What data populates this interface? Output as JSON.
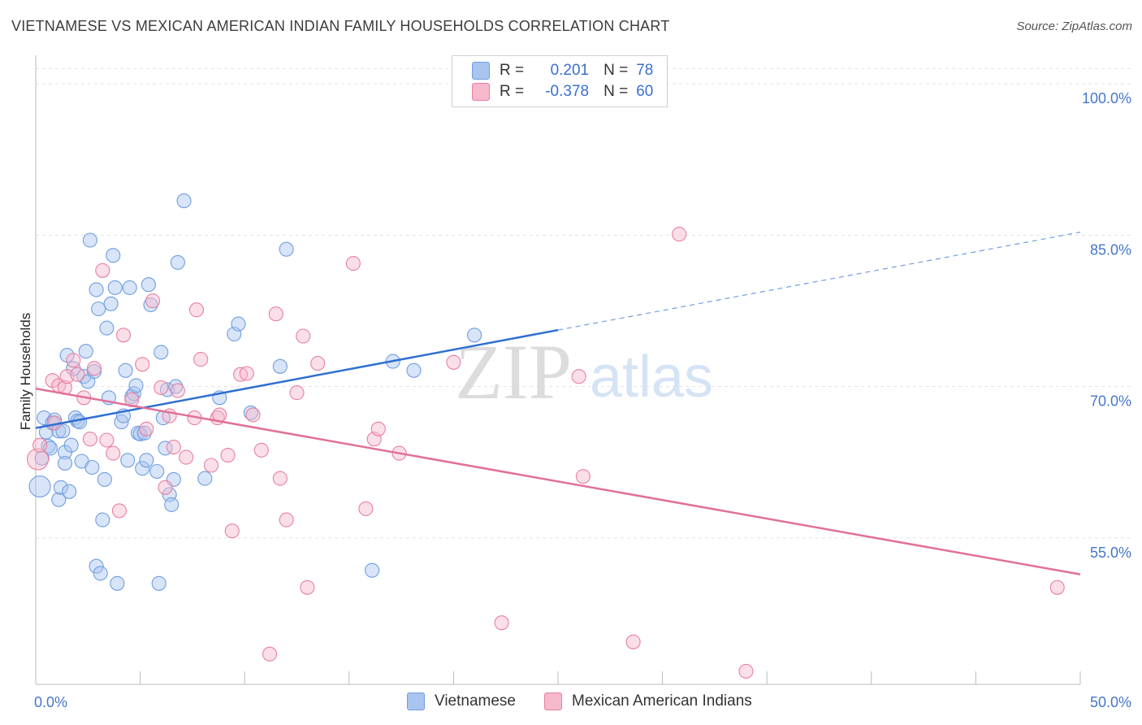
{
  "title": "VIETNAMESE VS MEXICAN AMERICAN INDIAN FAMILY HOUSEHOLDS CORRELATION CHART",
  "source": "Source: ZipAtlas.com",
  "watermark": {
    "zip": "ZIP",
    "atlas": "atlas"
  },
  "legend": {
    "r_label": "R =",
    "n_label": "N =",
    "rows": [
      {
        "r": "0.201",
        "n": "78",
        "color": "#a8c4ef"
      },
      {
        "r": "-0.378",
        "n": "60",
        "color": "#f6b8cb"
      }
    ]
  },
  "bottom_legend": {
    "items": [
      "Vietnamese",
      "Mexican American Indians"
    ]
  },
  "chart_data": {
    "type": "scatter",
    "title": "VIETNAMESE VS MEXICAN AMERICAN INDIAN FAMILY HOUSEHOLDS CORRELATION CHART",
    "xlabel": "",
    "ylabel": "Family Households",
    "xlim": [
      0,
      50
    ],
    "ylim": [
      40.5,
      102.5
    ],
    "y_ticks": [
      {
        "value": 100,
        "label": "100.0%"
      },
      {
        "value": 85,
        "label": "85.0%"
      },
      {
        "value": 70,
        "label": "70.0%"
      },
      {
        "value": 55,
        "label": "55.0%"
      }
    ],
    "x_ticks": [
      {
        "value": 0,
        "label": "0.0%"
      },
      {
        "value": 50,
        "label": "50.0%"
      }
    ],
    "grid": true,
    "legend_position": "top-center",
    "series": [
      {
        "name": "Vietnamese",
        "color": "#6f9ee0",
        "fill": "#a8c4ef",
        "trend": {
          "x0": 0,
          "y0": 65.9,
          "x1": 25,
          "y1": 75.6,
          "dash_to": 50,
          "dash_y": 85.3
        },
        "points": [
          [
            0.2,
            60.1
          ],
          [
            0.3,
            62.9
          ],
          [
            0.4,
            66.9
          ],
          [
            0.5,
            65.5
          ],
          [
            0.6,
            64.1
          ],
          [
            0.7,
            63.9
          ],
          [
            0.8,
            66.4
          ],
          [
            0.9,
            66.7
          ],
          [
            1.1,
            65.6
          ],
          [
            1.1,
            58.8
          ],
          [
            1.2,
            60.0
          ],
          [
            1.3,
            65.6
          ],
          [
            1.4,
            63.5
          ],
          [
            1.4,
            62.4
          ],
          [
            1.5,
            73.1
          ],
          [
            1.6,
            59.6
          ],
          [
            1.7,
            64.2
          ],
          [
            1.8,
            71.8
          ],
          [
            1.9,
            66.9
          ],
          [
            2.0,
            66.6
          ],
          [
            2.1,
            66.5
          ],
          [
            2.2,
            62.6
          ],
          [
            2.3,
            71.0
          ],
          [
            2.4,
            73.5
          ],
          [
            2.5,
            70.5
          ],
          [
            2.6,
            84.5
          ],
          [
            2.7,
            62.0
          ],
          [
            2.8,
            71.5
          ],
          [
            2.9,
            79.6
          ],
          [
            2.9,
            52.2
          ],
          [
            3.0,
            77.7
          ],
          [
            3.1,
            51.5
          ],
          [
            3.2,
            56.8
          ],
          [
            3.3,
            60.8
          ],
          [
            3.4,
            75.8
          ],
          [
            3.5,
            68.9
          ],
          [
            3.6,
            78.2
          ],
          [
            3.7,
            83.0
          ],
          [
            3.8,
            79.8
          ],
          [
            3.9,
            50.5
          ],
          [
            4.1,
            66.5
          ],
          [
            4.2,
            67.1
          ],
          [
            4.3,
            71.6
          ],
          [
            4.4,
            62.7
          ],
          [
            4.5,
            79.8
          ],
          [
            4.6,
            69.0
          ],
          [
            4.7,
            69.3
          ],
          [
            4.8,
            70.1
          ],
          [
            4.9,
            65.4
          ],
          [
            5.0,
            65.3
          ],
          [
            5.1,
            61.9
          ],
          [
            5.2,
            65.4
          ],
          [
            5.3,
            62.7
          ],
          [
            5.4,
            80.1
          ],
          [
            5.5,
            78.1
          ],
          [
            5.8,
            61.6
          ],
          [
            5.9,
            50.5
          ],
          [
            6.0,
            73.4
          ],
          [
            6.1,
            66.9
          ],
          [
            6.2,
            63.9
          ],
          [
            6.3,
            69.7
          ],
          [
            6.4,
            59.3
          ],
          [
            6.5,
            58.3
          ],
          [
            6.6,
            60.8
          ],
          [
            6.7,
            70.0
          ],
          [
            6.8,
            82.3
          ],
          [
            7.1,
            88.4
          ],
          [
            8.1,
            60.9
          ],
          [
            8.8,
            68.9
          ],
          [
            9.5,
            75.2
          ],
          [
            9.7,
            76.2
          ],
          [
            10.3,
            67.4
          ],
          [
            11.7,
            72.0
          ],
          [
            12.0,
            83.6
          ],
          [
            16.1,
            51.8
          ],
          [
            17.1,
            72.5
          ],
          [
            18.1,
            71.6
          ],
          [
            21.0,
            75.1
          ]
        ]
      },
      {
        "name": "Mexican American Indians",
        "color": "#e8809f",
        "fill": "#f6b8cb",
        "trend": {
          "x0": 0,
          "y0": 69.8,
          "x1": 50,
          "y1": 51.4
        },
        "points": [
          [
            0.1,
            62.8
          ],
          [
            0.2,
            64.2
          ],
          [
            0.8,
            70.6
          ],
          [
            0.9,
            66.4
          ],
          [
            1.1,
            70.1
          ],
          [
            1.4,
            69.9
          ],
          [
            1.5,
            71.0
          ],
          [
            1.8,
            72.6
          ],
          [
            2.0,
            71.2
          ],
          [
            2.3,
            68.9
          ],
          [
            2.6,
            64.8
          ],
          [
            2.8,
            71.8
          ],
          [
            3.2,
            81.5
          ],
          [
            3.4,
            64.7
          ],
          [
            3.7,
            63.4
          ],
          [
            4.0,
            57.7
          ],
          [
            4.2,
            75.1
          ],
          [
            4.6,
            68.7
          ],
          [
            5.1,
            72.2
          ],
          [
            5.3,
            65.8
          ],
          [
            5.6,
            78.5
          ],
          [
            6.0,
            69.9
          ],
          [
            6.2,
            60.0
          ],
          [
            6.4,
            67.1
          ],
          [
            6.6,
            64.0
          ],
          [
            6.8,
            69.6
          ],
          [
            7.2,
            63.0
          ],
          [
            7.6,
            66.9
          ],
          [
            7.7,
            77.6
          ],
          [
            7.9,
            72.7
          ],
          [
            8.4,
            62.2
          ],
          [
            8.7,
            66.9
          ],
          [
            8.8,
            67.2
          ],
          [
            9.2,
            63.2
          ],
          [
            9.4,
            55.7
          ],
          [
            9.8,
            71.2
          ],
          [
            10.1,
            71.3
          ],
          [
            10.4,
            67.2
          ],
          [
            10.8,
            63.7
          ],
          [
            11.2,
            43.5
          ],
          [
            11.5,
            77.2
          ],
          [
            11.7,
            60.9
          ],
          [
            12.0,
            56.8
          ],
          [
            12.5,
            69.4
          ],
          [
            12.8,
            75.0
          ],
          [
            13.0,
            50.1
          ],
          [
            13.5,
            72.3
          ],
          [
            15.2,
            82.2
          ],
          [
            15.8,
            57.9
          ],
          [
            16.2,
            64.8
          ],
          [
            16.4,
            65.8
          ],
          [
            17.4,
            63.4
          ],
          [
            20.0,
            72.4
          ],
          [
            22.3,
            46.6
          ],
          [
            26.0,
            71.0
          ],
          [
            26.2,
            61.1
          ],
          [
            28.6,
            44.7
          ],
          [
            30.8,
            85.1
          ],
          [
            34.0,
            41.8
          ],
          [
            48.9,
            50.1
          ]
        ]
      }
    ]
  }
}
